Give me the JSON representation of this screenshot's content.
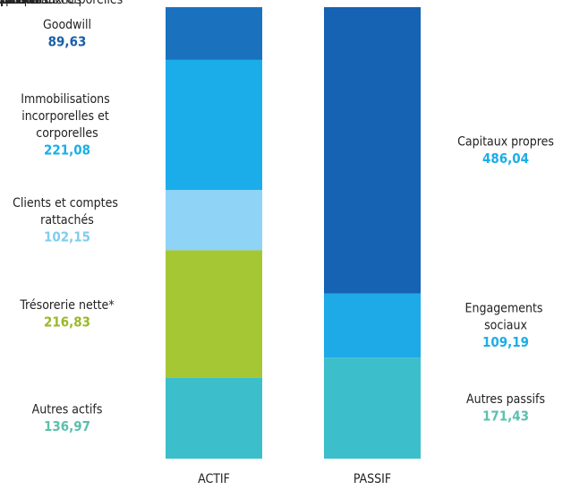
{
  "chart_data": {
    "type": "stacked_bar",
    "categories": [
      "ACTIF",
      "PASSIF"
    ],
    "series": [
      {
        "name": "Goodwill",
        "color": "#1a72bf",
        "label_color": "#1a5fa8",
        "values": [
          89.63,
          null
        ],
        "value_labels": [
          "89,63",
          null
        ]
      },
      {
        "name": "Immobilisations incorporelles et corporelles",
        "color": "#1badea",
        "label_color": "#1aaee8",
        "values": [
          221.08,
          null
        ],
        "value_labels": [
          "221,08",
          null
        ]
      },
      {
        "name": "Clients et comptes rattachés",
        "color": "#8fd3f6",
        "label_color": "#7fcdee",
        "values": [
          102.15,
          null
        ],
        "value_labels": [
          "102,15",
          null
        ]
      },
      {
        "name": "Trésorerie nette*",
        "color": "#a6c734",
        "label_color": "#9ab82a",
        "values": [
          216.83,
          null
        ],
        "value_labels": [
          "216,83",
          null
        ]
      },
      {
        "name": "Autres actifs",
        "color": "#3cbfcb",
        "label_color": "#5cbfae",
        "values": [
          136.97,
          null
        ],
        "value_labels": [
          "136,97",
          null
        ]
      },
      {
        "name": "Capitaux propres",
        "color": "#1662b3",
        "label_color": "#1aaee8",
        "values": [
          null,
          486.04
        ],
        "value_labels": [
          null,
          "486,04"
        ]
      },
      {
        "name": "Engagements sociaux",
        "color": "#1ea9e7",
        "label_color": "#1aaee8",
        "values": [
          null,
          109.19
        ],
        "value_labels": [
          null,
          "109,19"
        ]
      },
      {
        "name": "Autres passifs",
        "color": "#3cbfcb",
        "label_color": "#5cbfae",
        "values": [
          null,
          171.43
        ],
        "value_labels": [
          null,
          "171,43"
        ]
      }
    ]
  }
}
